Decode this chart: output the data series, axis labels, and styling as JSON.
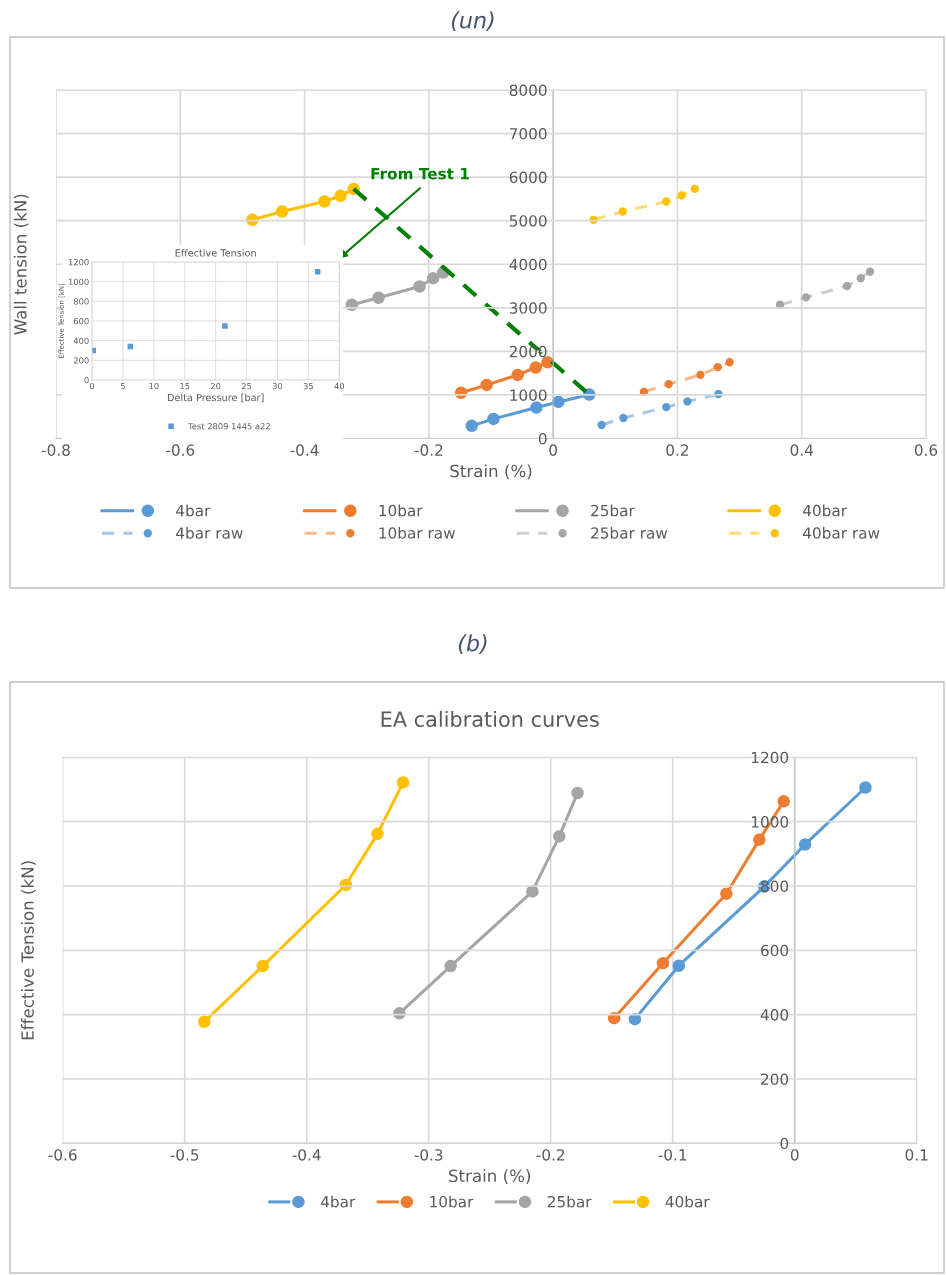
{
  "chart_data": [
    {
      "type": "line",
      "annotations": [
        "(un)",
        "From Test 1"
      ],
      "xlabel": "Strain (%)",
      "ylabel": "Wall tension (kN)",
      "xlim": [
        -0.8,
        0.6
      ],
      "xticks": [
        -0.8,
        -0.6,
        -0.4,
        -0.2,
        0,
        0.2,
        0.4,
        0.6
      ],
      "ylim": [
        0,
        8000
      ],
      "yticks": [
        0,
        1000,
        2000,
        3000,
        4000,
        5000,
        6000,
        7000,
        8000
      ],
      "grid": true,
      "legend": "bottom",
      "marker": "circle",
      "series": [
        {
          "name": "4bar",
          "color": "#5b9bd5",
          "x": [
            -0.131,
            -0.096,
            -0.027,
            0.0085,
            0.058
          ],
          "values": [
            290,
            450,
            710,
            840,
            1010
          ]
        },
        {
          "name": "4bar raw",
          "color": "#5b9bd5",
          "line_style": "dashed",
          "x": [
            0.078,
            0.113,
            0.182,
            0.216,
            0.266
          ],
          "values": [
            310,
            470,
            720,
            850,
            1020
          ]
        },
        {
          "name": "10bar",
          "color": "#ed7d31",
          "x": [
            -0.148,
            -0.107,
            -0.057,
            -0.028,
            -0.009
          ],
          "values": [
            1050,
            1230,
            1460,
            1630,
            1750
          ]
        },
        {
          "name": "10bar raw",
          "color": "#ed7d31",
          "line_style": "dashed",
          "x": [
            0.146,
            0.186,
            0.237,
            0.265,
            0.284
          ],
          "values": [
            1070,
            1250,
            1460,
            1640,
            1750
          ]
        },
        {
          "name": "25bar",
          "color": "#a5a5a5",
          "x": [
            -0.324,
            -0.281,
            -0.215,
            -0.193,
            -0.177
          ],
          "values": [
            3070,
            3230,
            3490,
            3680,
            3810
          ]
        },
        {
          "name": "25bar raw",
          "color": "#a5a5a5",
          "line_style": "dashed",
          "x": [
            0.365,
            0.407,
            0.473,
            0.495,
            0.51
          ],
          "values": [
            3070,
            3240,
            3500,
            3680,
            3830
          ]
        },
        {
          "name": "40bar",
          "color": "#ffc000",
          "x": [
            -0.484,
            -0.436,
            -0.368,
            -0.342,
            -0.321
          ],
          "values": [
            5020,
            5210,
            5440,
            5570,
            5730
          ]
        },
        {
          "name": "40bar raw",
          "color": "#ffc000",
          "line_style": "dashed",
          "x": [
            0.065,
            0.112,
            0.182,
            0.207,
            0.228
          ],
          "values": [
            5020,
            5210,
            5440,
            5580,
            5730
          ]
        },
        {
          "color": "#008000",
          "line_style": "dashed",
          "marker": "none",
          "x": [
            -0.321,
            0.058
          ],
          "values": [
            5730,
            1010
          ]
        }
      ]
    },
    {
      "type": "scatter",
      "title": "Effective Tension",
      "xlabel": "Delta Pressure [bar]",
      "ylabel": "Effective Tension [kN]",
      "xlim": [
        0,
        40
      ],
      "xticks": [
        0,
        5,
        10,
        15,
        20,
        25,
        30,
        35,
        40
      ],
      "ylim": [
        0,
        1200
      ],
      "yticks": [
        0,
        200,
        400,
        600,
        800,
        1000,
        1200
      ],
      "grid": true,
      "legend": "bottom",
      "marker": "square",
      "series": [
        {
          "name": "Test 2809 1445 a22",
          "color": "#5b9bd5",
          "x": [
            0.2,
            6.2,
            21.5,
            36.5
          ],
          "values": [
            300,
            340,
            550,
            1100
          ]
        }
      ]
    },
    {
      "type": "line",
      "title": "EA calibration curves",
      "annotations": [
        "(b)"
      ],
      "xlabel": "Strain (%)",
      "ylabel": "Effective Tension (kN)",
      "xlim": [
        -0.6,
        0.1
      ],
      "xticks": [
        -0.6,
        -0.5,
        -0.4,
        -0.3,
        -0.2,
        -0.1,
        0,
        0.1
      ],
      "ylim": [
        0,
        1200
      ],
      "yticks": [
        0,
        200,
        400,
        600,
        800,
        1000,
        1200
      ],
      "grid": true,
      "legend": "bottom",
      "marker": "circle",
      "series": [
        {
          "name": "4bar",
          "color": "#5b9bd5",
          "x": [
            -0.131,
            -0.095,
            -0.025,
            0.0085,
            0.058
          ],
          "values": [
            386,
            552,
            798,
            929,
            1106
          ]
        },
        {
          "name": "10bar",
          "color": "#ed7d31",
          "x": [
            -0.148,
            -0.108,
            -0.056,
            -0.029,
            -0.009
          ],
          "values": [
            389,
            560,
            776,
            944,
            1063
          ]
        },
        {
          "name": "25bar",
          "color": "#a5a5a5",
          "x": [
            -0.324,
            -0.282,
            -0.215,
            -0.193,
            -0.178
          ],
          "values": [
            404,
            551,
            783,
            954,
            1089
          ]
        },
        {
          "name": "40bar",
          "color": "#ffc000",
          "x": [
            -0.484,
            -0.436,
            -0.368,
            -0.342,
            -0.321
          ],
          "values": [
            378,
            551,
            803,
            962,
            1122
          ]
        }
      ]
    }
  ]
}
